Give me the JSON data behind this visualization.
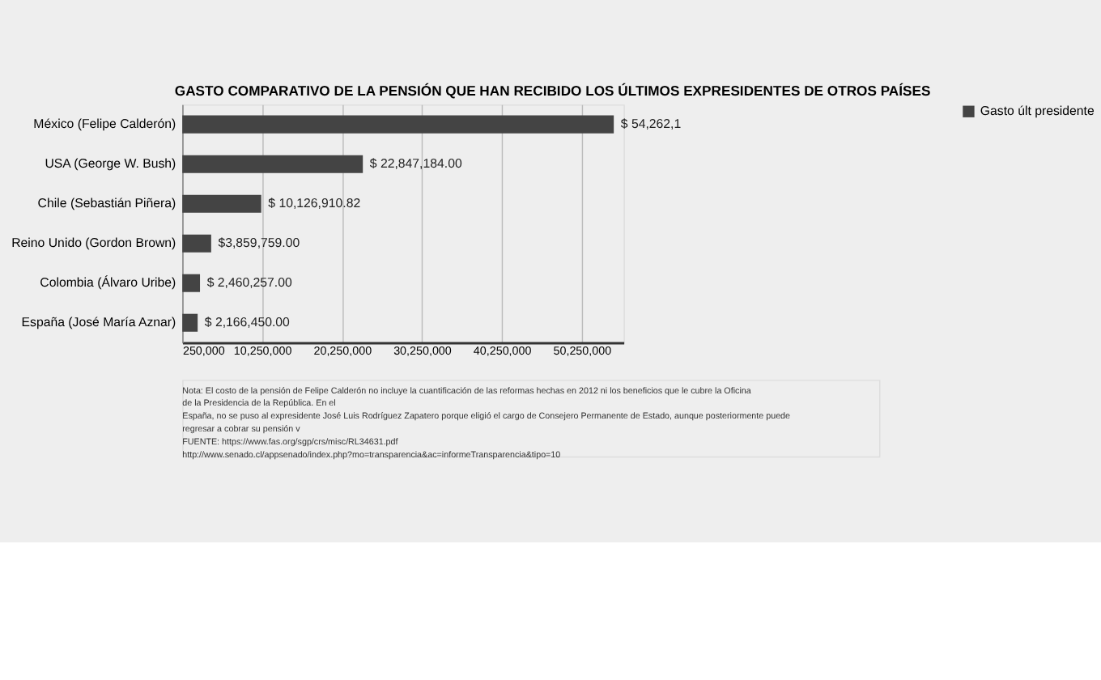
{
  "chart_data": {
    "type": "bar",
    "orientation": "horizontal",
    "title": "GASTO COMPARATIVO DE LA PENSIÓN QUE HAN RECIBIDO LOS ÚLTIMOS EXPRESIDENTES DE OTROS PAÍSES",
    "categories": [
      "México (Felipe Calderón)",
      "USA (George W. Bush)",
      "Chile (Sebastián Piñera)",
      "Reino Unido (Gordon Brown)",
      "Colombia (Álvaro Uribe)",
      "España (José María Aznar)"
    ],
    "series": [
      {
        "name": "Gasto últ presidente",
        "color": "#444444",
        "values": [
          54262100,
          22847184,
          10126910.82,
          3859759,
          2460257,
          2166450
        ],
        "value_labels": [
          "$ 54,262,1",
          "$ 22,847,184.00",
          "$ 10,126,910.82",
          "$3,859,759.00",
          "$ 2,460,257.00",
          "$ 2,166,450.00"
        ]
      }
    ],
    "xlim": [
      250000,
      55500000
    ],
    "xticks": [
      {
        "value": 250000,
        "label": "250,000"
      },
      {
        "value": 10250000,
        "label": "10,250,000"
      },
      {
        "value": 20250000,
        "label": "20,250,000"
      },
      {
        "value": 30250000,
        "label": "30,250,000"
      },
      {
        "value": 40250000,
        "label": "40,250,000"
      },
      {
        "value": 50250000,
        "label": "50,250,000"
      }
    ],
    "grid": "x",
    "legend": "right",
    "annotations": [
      "Nota: El costo de la pensión de Felipe Calderón no incluye la cuantificación de las reformas hechas en 2012 ni los beneficios que le cubre la Oficina de la Presidencia de la República. En el",
      "España, no se puso al expresidente José Luis Rodríguez Zapatero porque eligió el cargo de Consejero Permanente de Estado, aunque posteriormente puede regresar a cobrar su pensión v",
      "FUENTE: https://www.fas.org/sgp/crs/misc/RL34631.pdf",
      "http://www.senado.cl/appsenado/index.php?mo=transparencia&ac=informeTransparencia&tipo=10"
    ]
  }
}
